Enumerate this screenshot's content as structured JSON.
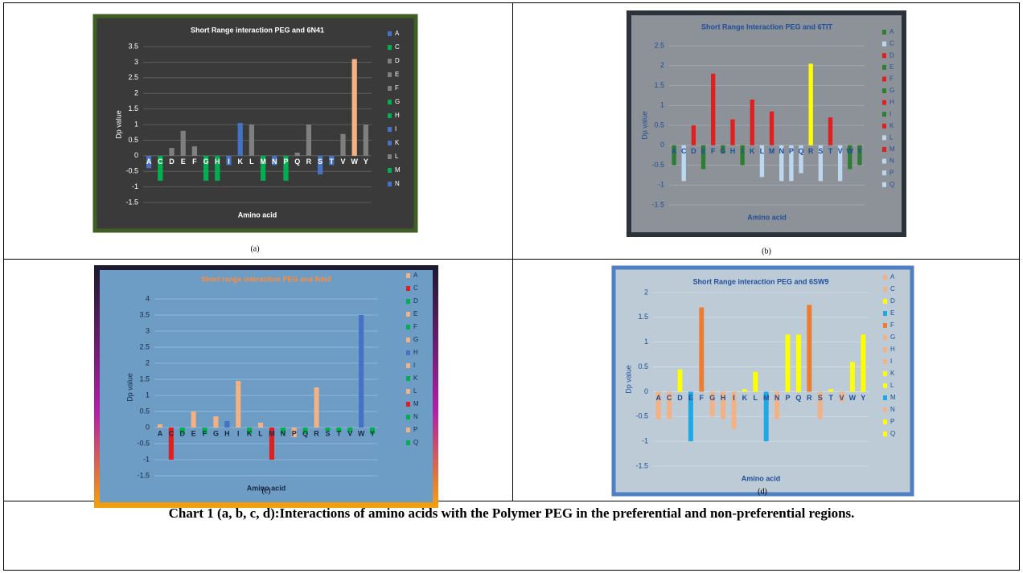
{
  "chart_data": [
    {
      "type": "bar",
      "label": "(a)",
      "title": "Short Range interaction  PEG and 6N41",
      "y_label": "Dp value",
      "x_label": "Amino acid",
      "categories": [
        "A",
        "C",
        "D",
        "E",
        "F",
        "G",
        "H",
        "I",
        "K",
        "L",
        "M",
        "N",
        "P",
        "Q",
        "R",
        "S",
        "T",
        "V",
        "W",
        "Y"
      ],
      "values": [
        -0.4,
        -0.8,
        0.25,
        0.8,
        0.3,
        -0.8,
        -0.8,
        -0.3,
        1.05,
        1.0,
        -0.8,
        -0.3,
        -0.8,
        0.1,
        1.0,
        -0.6,
        -0.3,
        0.7,
        3.1,
        1.0
      ],
      "colors": [
        "#4472c4",
        "#00b050",
        "#7f7f7f",
        "#7f7f7f",
        "#7f7f7f",
        "#00b050",
        "#00b050",
        "#4472c4",
        "#4472c4",
        "#7f7f7f",
        "#00b050",
        "#4472c4",
        "#00b050",
        "#7f7f7f",
        "#7f7f7f",
        "#4472c4",
        "#4472c4",
        "#7f7f7f",
        "#f4b183",
        "#7f7f7f"
      ],
      "legend": [
        "A",
        "C",
        "D",
        "E",
        "F",
        "G",
        "H",
        "I",
        "K",
        "L",
        "M",
        "N"
      ],
      "ylim": [
        -1.5,
        3.5
      ],
      "yticks": [
        -1.5,
        -1,
        -0.5,
        0,
        0.5,
        1,
        1.5,
        2,
        2.5,
        3,
        3.5
      ],
      "grid": true
    },
    {
      "type": "bar",
      "label": "(b)",
      "title": "Short Range  Interaction PEG and 6TIT",
      "y_label": "Dp value",
      "x_label": "Amino acid",
      "categories": [
        "A",
        "C",
        "D",
        "E",
        "F",
        "G",
        "H",
        "I",
        "K",
        "L",
        "M",
        "N",
        "P",
        "Q",
        "R",
        "S",
        "T",
        "V",
        "W",
        "Y"
      ],
      "values": [
        -0.5,
        -0.9,
        0.5,
        -0.6,
        1.8,
        -0.2,
        0.65,
        -0.5,
        1.15,
        -0.8,
        0.85,
        -0.9,
        -0.9,
        -0.7,
        2.05,
        -0.9,
        0.7,
        -0.9,
        -0.6,
        -0.5
      ],
      "colors": [
        "#2e7d32",
        "#bcd7f0",
        "#e02020",
        "#2e7d32",
        "#e02020",
        "#2e7d32",
        "#e02020",
        "#2e7d32",
        "#e02020",
        "#bcd7f0",
        "#e02020",
        "#bcd7f0",
        "#bcd7f0",
        "#bcd7f0",
        "#ffff00",
        "#bcd7f0",
        "#e02020",
        "#bcd7f0",
        "#2e7d32",
        "#2e7d32"
      ],
      "legend": [
        "A",
        "C",
        "D",
        "E",
        "F",
        "G",
        "H",
        "I",
        "K",
        "L",
        "M",
        "N",
        "P",
        "Q"
      ],
      "ylim": [
        -1.5,
        2.5
      ],
      "yticks": [
        -1.5,
        -1,
        -0.5,
        0,
        0.5,
        1,
        1.5,
        2,
        2.5
      ],
      "grid": true
    },
    {
      "type": "bar",
      "label": "(c)",
      "title": "Short range interaction PEG and 8ds0",
      "y_label": "Dp value",
      "x_label": "Amino acid",
      "categories": [
        "A",
        "C",
        "D",
        "E",
        "F",
        "G",
        "H",
        "I",
        "K",
        "L",
        "M",
        "N",
        "P",
        "Q",
        "R",
        "S",
        "T",
        "V",
        "W",
        "Y"
      ],
      "values": [
        0.1,
        -1.0,
        -0.2,
        0.5,
        -0.2,
        0.35,
        0.2,
        1.45,
        -0.2,
        0.15,
        -1.0,
        -0.2,
        -0.3,
        -0.2,
        1.25,
        -0.1,
        -0.15,
        -0.15,
        3.5,
        -0.2
      ],
      "colors": [
        "#f4b183",
        "#e02020",
        "#00b050",
        "#f4b183",
        "#00b050",
        "#f4b183",
        "#4472c4",
        "#f4b183",
        "#00b050",
        "#f4b183",
        "#e02020",
        "#00b050",
        "#f4b183",
        "#00b050",
        "#f4b183",
        "#00b050",
        "#00b050",
        "#00b050",
        "#4472c4",
        "#00b050"
      ],
      "legend": [
        "A",
        "C",
        "D",
        "E",
        "F",
        "G",
        "H",
        "I",
        "K",
        "L",
        "M",
        "N",
        "P",
        "Q"
      ],
      "ylim": [
        -1.5,
        4
      ],
      "yticks": [
        -1.5,
        -1,
        -0.5,
        0,
        0.5,
        1,
        1.5,
        2,
        2.5,
        3,
        3.5,
        4
      ],
      "grid": true
    },
    {
      "type": "bar",
      "label": "(d)",
      "title": "Short Range interaction PEG and 6SW9",
      "y_label": "Dp value",
      "x_label": "Amino acid",
      "categories": [
        "A",
        "C",
        "D",
        "E",
        "F",
        "G",
        "H",
        "I",
        "K",
        "L",
        "M",
        "N",
        "P",
        "Q",
        "R",
        "S",
        "T",
        "V",
        "W",
        "Y"
      ],
      "values": [
        -0.55,
        -0.55,
        0.45,
        -1.0,
        1.7,
        -0.5,
        -0.55,
        -0.75,
        0.05,
        0.4,
        -1.0,
        -0.55,
        1.15,
        1.15,
        1.75,
        -0.55,
        0.05,
        -0.2,
        0.6,
        1.15
      ],
      "colors": [
        "#f4b183",
        "#f4b183",
        "#ffff00",
        "#1ca9e6",
        "#ed7d31",
        "#f4b183",
        "#f4b183",
        "#f4b183",
        "#ffff00",
        "#ffff00",
        "#1ca9e6",
        "#f4b183",
        "#ffff00",
        "#ffff00",
        "#ed7d31",
        "#f4b183",
        "#ffff00",
        "#f4b183",
        "#ffff00",
        "#ffff00"
      ],
      "legend": [
        "A",
        "C",
        "D",
        "E",
        "F",
        "G",
        "H",
        "I",
        "K",
        "L",
        "M",
        "N",
        "P",
        "Q"
      ],
      "ylim": [
        -1.5,
        2
      ],
      "yticks": [
        -1.5,
        -1,
        -0.5,
        0,
        0.5,
        1,
        1.5,
        2
      ],
      "grid": true
    }
  ],
  "caption": "Chart 1 (a, b, c, d):Interactions of amino acids with the Polymer PEG in the preferential and non-preferential regions."
}
